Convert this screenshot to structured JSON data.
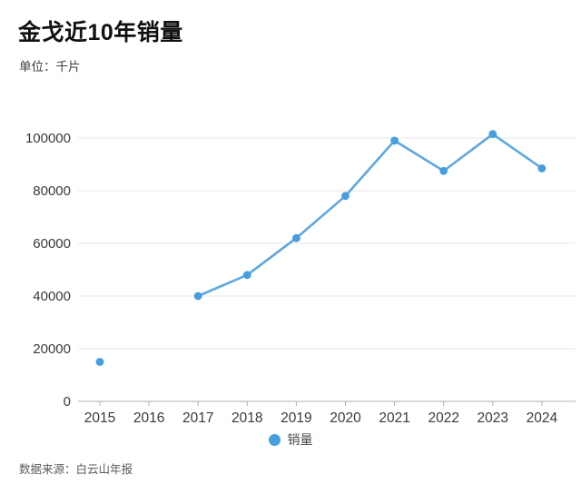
{
  "title": "金戈近10年销量",
  "subtitle": "单位：千片",
  "legend": {
    "label": "销量"
  },
  "footer": "数据来源：白云山年报",
  "colors": {
    "line": "#5ea8e0",
    "point": "#469edd",
    "grid": "#e7e7e7",
    "axis": "#b0b0b0",
    "tick_text": "#3a3a3a",
    "title_text": "#111111"
  },
  "chart_data": {
    "type": "line",
    "title": "金戈近10年销量",
    "unit_label": "单位：千片",
    "categories": [
      "2015",
      "2016",
      "2017",
      "2018",
      "2019",
      "2020",
      "2021",
      "2022",
      "2023",
      "2024"
    ],
    "series": [
      {
        "name": "销量",
        "values": [
          15000,
          null,
          40000,
          48000,
          62000,
          78000,
          99000,
          87500,
          101500,
          88500
        ]
      }
    ],
    "xlabel": "",
    "ylabel": "",
    "ylim": [
      0,
      100000
    ],
    "ytick_interval": 20000,
    "ytick_labels": [
      "0",
      "20000",
      "40000",
      "60000",
      "80000",
      "100000"
    ],
    "grid": "horizontal",
    "legend_position": "bottom",
    "note": "2016 value not shown in chart",
    "source": "白云山年报"
  }
}
